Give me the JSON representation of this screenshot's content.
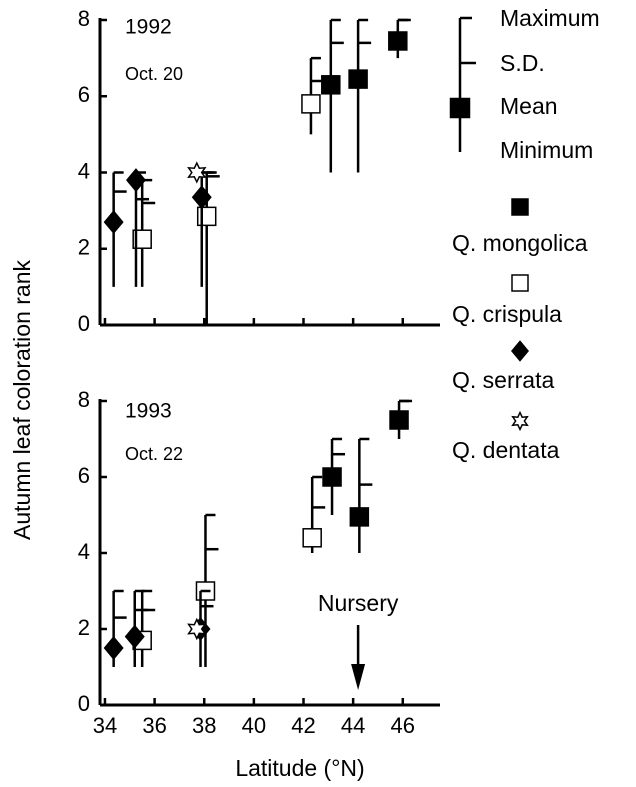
{
  "chart_data": [
    {
      "type": "scatter",
      "ylabel": "Autumn leaf coloration rank",
      "annotations": [
        "1992",
        "Oct. 20"
      ],
      "key": {
        "max": "Maximum",
        "sd": "S.D.",
        "mean": "Mean",
        "min": "Minimum"
      },
      "xlim": [
        33.8,
        47.5
      ],
      "xticks": [
        34,
        36,
        38,
        40,
        42,
        44,
        46
      ],
      "ylim": [
        0,
        8
      ],
      "yticks": [
        0,
        2,
        4,
        6,
        8
      ],
      "series": [
        {
          "name": "Q. mongolica",
          "marker": "square",
          "color": "#000000",
          "x": [
            43.1,
            44.2,
            45.8
          ],
          "values": [
            6.3,
            6.45,
            7.45
          ],
          "max": [
            8,
            8,
            8
          ],
          "min": [
            4,
            4,
            7
          ],
          "sd": [
            7.4,
            7.4,
            8
          ]
        },
        {
          "name": "Q. crispula",
          "marker": "square",
          "color": "#ffffff",
          "x": [
            35.5,
            38.1,
            42.3
          ],
          "values": [
            2.25,
            2.85,
            5.8
          ],
          "max": [
            3.8,
            4,
            7
          ],
          "min": [
            1,
            0,
            5
          ],
          "sd": [
            3.2,
            3.9,
            6.4
          ]
        },
        {
          "name": "Q. serrata",
          "marker": "diamond",
          "color": "#000000",
          "x": [
            34.35,
            35.25,
            37.9
          ],
          "values": [
            2.7,
            3.8,
            3.35
          ],
          "max": [
            4,
            4,
            4
          ],
          "min": [
            1,
            1,
            1
          ],
          "sd": [
            3.5,
            3.3,
            4
          ]
        },
        {
          "name": "Q. dentata",
          "marker": "star",
          "color": "#ffffff",
          "x": [
            37.7
          ],
          "values": [
            4.0
          ],
          "max": [
            4
          ],
          "min": [
            4
          ],
          "sd": [
            4
          ]
        }
      ]
    },
    {
      "type": "scatter",
      "xlabel": "Latitude (°N)",
      "annotations": [
        "1993",
        "Oct. 22"
      ],
      "arrow_label": "Nursery",
      "arrow_x": 44.2,
      "xlim": [
        33.8,
        47.5
      ],
      "xticks": [
        34,
        36,
        38,
        40,
        42,
        44,
        46
      ],
      "ylim": [
        0,
        8
      ],
      "yticks": [
        0,
        2,
        4,
        6,
        8
      ],
      "series": [
        {
          "marker": "square",
          "color": "#000000",
          "x": [
            43.15,
            44.25,
            45.85
          ],
          "values": [
            6.0,
            4.95,
            7.5
          ],
          "max": [
            7,
            7,
            8
          ],
          "min": [
            5,
            4,
            7
          ],
          "sd": [
            6.6,
            5.8,
            8
          ]
        },
        {
          "marker": "square",
          "color": "#ffffff",
          "x": [
            35.5,
            38.05,
            42.35
          ],
          "values": [
            1.7,
            3.0,
            4.4
          ],
          "max": [
            3,
            5,
            6
          ],
          "min": [
            1,
            1,
            4
          ],
          "sd": [
            2.5,
            4.1,
            5.2
          ]
        },
        {
          "marker": "diamond",
          "color": "#000000",
          "x": [
            34.35,
            35.2,
            37.85
          ],
          "values": [
            1.5,
            1.8,
            2.0
          ],
          "max": [
            3,
            3,
            3
          ],
          "min": [
            1,
            1,
            1
          ],
          "sd": [
            2.3,
            2.5,
            2.6
          ]
        },
        {
          "marker": "star",
          "color": "#ffffff",
          "x": [
            37.7
          ],
          "values": [
            2.0
          ],
          "max": [
            2
          ],
          "min": [
            2
          ],
          "sd": [
            2
          ]
        }
      ]
    }
  ]
}
